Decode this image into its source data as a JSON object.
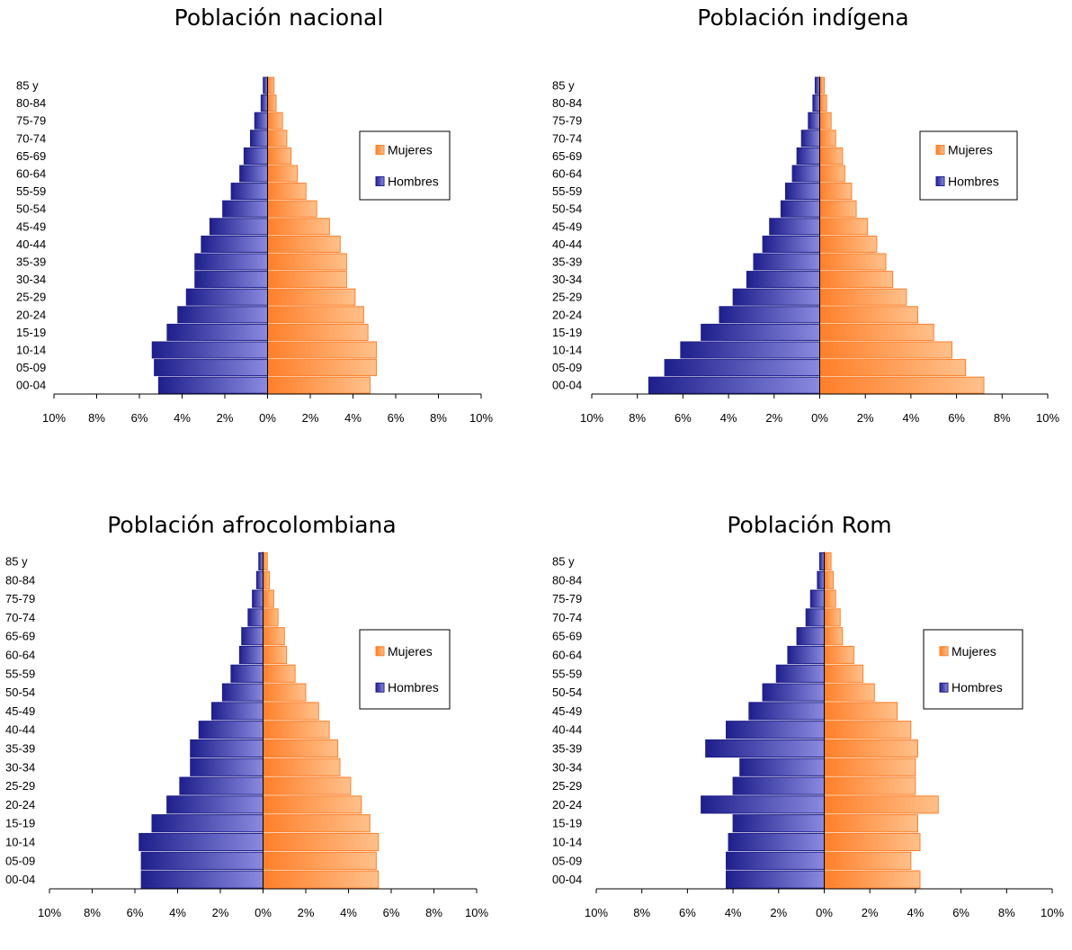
{
  "colors": {
    "female": "#ff7f2a",
    "female_light": "#ffc08a",
    "male": "#1f1f8c",
    "male_light": "#8a8ae0",
    "axis": "#000000"
  },
  "chart_data": [
    {
      "type": "bar",
      "orientation": "horizontal-pyramid",
      "title": "Población nacional",
      "categories": [
        "00-04",
        "05-09",
        "10-14",
        "15-19",
        "20-24",
        "25-29",
        "30-34",
        "35-39",
        "40-44",
        "45-49",
        "50-54",
        "55-59",
        "60-64",
        "65-69",
        "70-74",
        "75-79",
        "80-84",
        "85 y"
      ],
      "series": [
        {
          "name": "Hombres",
          "values": [
            5.1,
            5.3,
            5.4,
            4.7,
            4.2,
            3.8,
            3.4,
            3.4,
            3.1,
            2.7,
            2.1,
            1.7,
            1.3,
            1.1,
            0.8,
            0.6,
            0.3,
            0.2
          ]
        },
        {
          "name": "Mujeres",
          "values": [
            4.8,
            5.1,
            5.1,
            4.7,
            4.5,
            4.1,
            3.7,
            3.7,
            3.4,
            2.9,
            2.3,
            1.8,
            1.4,
            1.1,
            0.9,
            0.7,
            0.4,
            0.3
          ]
        }
      ],
      "xlim": [
        -10,
        10
      ],
      "xticks": [
        "10%",
        "8%",
        "6%",
        "4%",
        "2%",
        "0%",
        "2%",
        "4%",
        "6%",
        "8%",
        "10%"
      ],
      "legend": "right"
    },
    {
      "type": "bar",
      "orientation": "horizontal-pyramid",
      "title": "Población indígena",
      "categories": [
        "00-04",
        "05-09",
        "10-14",
        "15-19",
        "20-24",
        "25-29",
        "30-34",
        "35-39",
        "40-44",
        "45-49",
        "50-54",
        "55-59",
        "60-64",
        "65-69",
        "70-74",
        "75-79",
        "80-84",
        "85 y"
      ],
      "series": [
        {
          "name": "Hombres",
          "values": [
            7.5,
            6.8,
            6.1,
            5.2,
            4.4,
            3.8,
            3.2,
            2.9,
            2.5,
            2.2,
            1.7,
            1.5,
            1.2,
            1.0,
            0.8,
            0.5,
            0.3,
            0.2
          ]
        },
        {
          "name": "Mujeres",
          "values": [
            7.2,
            6.4,
            5.8,
            5.0,
            4.3,
            3.8,
            3.2,
            2.9,
            2.5,
            2.1,
            1.6,
            1.4,
            1.1,
            1.0,
            0.7,
            0.5,
            0.3,
            0.2
          ]
        }
      ],
      "xlim": [
        -10,
        10
      ],
      "xticks": [
        "10%",
        "8%",
        "6%",
        "4%",
        "2%",
        "0%",
        "2%",
        "4%",
        "6%",
        "8%",
        "10%"
      ],
      "legend": "right"
    },
    {
      "type": "bar",
      "orientation": "horizontal-pyramid",
      "title": "Población afrocolombiana",
      "categories": [
        "00-04",
        "05-09",
        "10-14",
        "15-19",
        "20-24",
        "25-29",
        "30-34",
        "35-39",
        "40-44",
        "45-49",
        "50-54",
        "55-59",
        "60-64",
        "65-69",
        "70-74",
        "75-79",
        "80-84",
        "85 y"
      ],
      "series": [
        {
          "name": "Hombres",
          "values": [
            5.7,
            5.7,
            5.8,
            5.2,
            4.5,
            3.9,
            3.4,
            3.4,
            3.0,
            2.4,
            1.9,
            1.5,
            1.1,
            1.0,
            0.7,
            0.5,
            0.3,
            0.2
          ]
        },
        {
          "name": "Mujeres",
          "values": [
            5.4,
            5.3,
            5.4,
            5.0,
            4.6,
            4.1,
            3.6,
            3.5,
            3.1,
            2.6,
            2.0,
            1.5,
            1.1,
            1.0,
            0.7,
            0.5,
            0.3,
            0.2
          ]
        }
      ],
      "xlim": [
        -10,
        10
      ],
      "xticks": [
        "10%",
        "8%",
        "6%",
        "4%",
        "2%",
        "0%",
        "2%",
        "4%",
        "6%",
        "8%",
        "10%"
      ],
      "legend": "right"
    },
    {
      "type": "bar",
      "orientation": "horizontal-pyramid",
      "title": "Población Rom",
      "categories": [
        "00-04",
        "05-09",
        "10-14",
        "15-19",
        "20-24",
        "25-29",
        "30-34",
        "35-39",
        "40-44",
        "45-49",
        "50-54",
        "55-59",
        "60-64",
        "65-69",
        "70-74",
        "75-79",
        "80-84",
        "85 y"
      ],
      "series": [
        {
          "name": "Hombres",
          "values": [
            4.3,
            4.3,
            4.2,
            4.0,
            5.4,
            4.0,
            3.7,
            5.2,
            4.3,
            3.3,
            2.7,
            2.1,
            1.6,
            1.2,
            0.8,
            0.6,
            0.3,
            0.2
          ]
        },
        {
          "name": "Mujeres",
          "values": [
            4.2,
            3.8,
            4.2,
            4.1,
            5.0,
            4.0,
            4.0,
            4.1,
            3.8,
            3.2,
            2.2,
            1.7,
            1.3,
            0.8,
            0.7,
            0.5,
            0.4,
            0.3
          ]
        }
      ],
      "xlim": [
        -10,
        10
      ],
      "xticks": [
        "10%",
        "8%",
        "6%",
        "4%",
        "2%",
        "0%",
        "2%",
        "4%",
        "6%",
        "8%",
        "10%"
      ],
      "legend": "right"
    }
  ]
}
